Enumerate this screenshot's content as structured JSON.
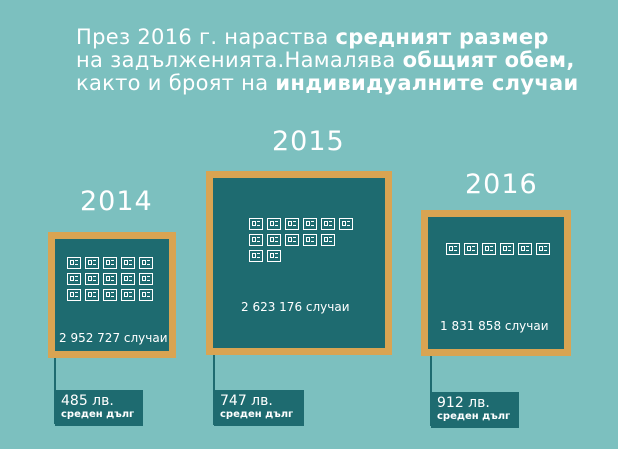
{
  "headline": {
    "line1_a": "През 2016 г. нараства ",
    "line1_b": "средният размер",
    "line2_a": "на задълженията.Намалява ",
    "line2_b": "общият обем,",
    "line3_a": "както и броят на ",
    "line3_b": "индивидуалните случаи"
  },
  "panels": [
    {
      "year": "2014",
      "cases": "2 952 727 случаи",
      "debt": "485 лв.",
      "debt_label": "среден дълг",
      "icon_rows": [
        5,
        5,
        5
      ]
    },
    {
      "year": "2015",
      "cases": "2 623 176 случаи",
      "debt": "747 лв.",
      "debt_label": "среден дълг",
      "icon_rows": [
        6,
        5,
        2
      ]
    },
    {
      "year": "2016",
      "cases": "1 831 858 случаи",
      "debt": "912 лв.",
      "debt_label": "среден дълг",
      "icon_rows": [
        6
      ]
    }
  ],
  "colors": {
    "background": "#7cc0bf",
    "panel": "#1e6b70",
    "border": "#d9a452",
    "text": "#ffffff"
  },
  "icons": {
    "case": "document-icon"
  }
}
